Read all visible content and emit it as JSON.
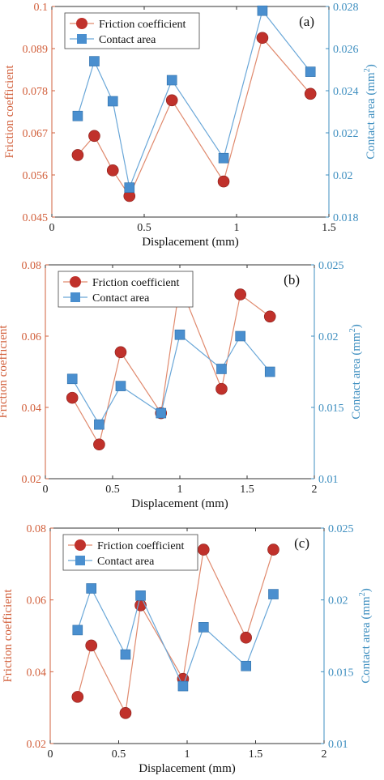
{
  "colors": {
    "friction": "#c0312b",
    "friction_line": "#e08a6e",
    "contact": "#4a8fcf",
    "contact_line": "#6aa7d8",
    "left_axis": "#d2603c",
    "right_axis": "#3f8fc0",
    "frame": "#333333"
  },
  "chart_data": [
    {
      "type": "line",
      "panel_label": "(a)",
      "xlabel": "Displacement (mm)",
      "ylabel_left": "Friction coefficient",
      "ylabel_right": "Contact area (mm",
      "ylabel_right_sup": "2",
      "ylabel_right_close": ")",
      "xlim": [
        0,
        1.5
      ],
      "xticks": [
        0,
        0.5,
        1,
        1.5
      ],
      "xtick_labels": [
        "0",
        "0.5",
        "1",
        "1.5"
      ],
      "ylim_left": [
        0.045,
        0.1
      ],
      "yticks_left": [
        0.045,
        0.056,
        0.067,
        0.078,
        0.089,
        0.1
      ],
      "ytick_labels_left": [
        "0.045",
        "0.056",
        "0.067",
        "0.078",
        "0.089",
        "0.1"
      ],
      "ylim_right": [
        0.018,
        0.028
      ],
      "yticks_right": [
        0.018,
        0.02,
        0.022,
        0.024,
        0.026,
        0.028
      ],
      "ytick_labels_right": [
        "0.018",
        "0.02",
        "0.022",
        "0.024",
        "0.026",
        "0.028"
      ],
      "legend_position": "top-left",
      "series": [
        {
          "name": "Friction coefficient",
          "axis": "left",
          "marker": "circle",
          "x": [
            0.14,
            0.23,
            0.33,
            0.42,
            0.65,
            0.93,
            1.14,
            1.4
          ],
          "y": [
            0.0612,
            0.0662,
            0.0572,
            0.0505,
            0.0755,
            0.0543,
            0.0918,
            0.0772
          ]
        },
        {
          "name": "Contact area",
          "axis": "right",
          "marker": "square",
          "x": [
            0.14,
            0.23,
            0.33,
            0.42,
            0.65,
            0.93,
            1.14,
            1.4
          ],
          "y": [
            0.0228,
            0.0254,
            0.0235,
            0.0194,
            0.0245,
            0.0208,
            0.0278,
            0.0249
          ]
        }
      ]
    },
    {
      "type": "line",
      "panel_label": "(b)",
      "xlabel": "Displacement (mm)",
      "ylabel_left": "Friction coefficient",
      "ylabel_right": "Contact area (mm",
      "ylabel_right_sup": "2",
      "ylabel_right_close": ")",
      "xlim": [
        0,
        2
      ],
      "xticks": [
        0,
        0.5,
        1,
        1.5,
        2
      ],
      "xtick_labels": [
        "0",
        "0.5",
        "1",
        "1.5",
        "2"
      ],
      "ylim_left": [
        0.02,
        0.08
      ],
      "yticks_left": [
        0.02,
        0.04,
        0.06,
        0.08
      ],
      "ytick_labels_left": [
        "0.02",
        "0.04",
        "0.06",
        "0.08"
      ],
      "ylim_right": [
        0.01,
        0.025
      ],
      "yticks_right": [
        0.01,
        0.015,
        0.02,
        0.025
      ],
      "ytick_labels_right": [
        "0.01",
        "0.015",
        "0.02",
        "0.025"
      ],
      "legend_position": "top-left",
      "series": [
        {
          "name": "Friction coefficient",
          "axis": "left",
          "marker": "circle",
          "x": [
            0.2,
            0.4,
            0.56,
            0.86,
            1.0,
            1.31,
            1.45,
            1.67
          ],
          "y": [
            0.0427,
            0.0296,
            0.0555,
            0.0384,
            0.0745,
            0.0452,
            0.0717,
            0.0655
          ]
        },
        {
          "name": "Contact area",
          "axis": "right",
          "marker": "square",
          "x": [
            0.2,
            0.4,
            0.56,
            0.86,
            1.0,
            1.31,
            1.45,
            1.67
          ],
          "y": [
            0.017,
            0.0138,
            0.0165,
            0.0146,
            0.0201,
            0.0177,
            0.02,
            0.0175
          ]
        }
      ]
    },
    {
      "type": "line",
      "panel_label": "(c)",
      "xlabel": "Displacement (mm)",
      "ylabel_left": "Friction coefficient",
      "ylabel_right": "Contact area (mm",
      "ylabel_right_sup": "2",
      "ylabel_right_close": ")",
      "xlim": [
        0,
        2
      ],
      "xticks": [
        0,
        0.5,
        1,
        1.5,
        2
      ],
      "xtick_labels": [
        "0",
        "0.5",
        "1",
        "1.5",
        "2"
      ],
      "ylim_left": [
        0.02,
        0.08
      ],
      "yticks_left": [
        0.02,
        0.04,
        0.06,
        0.08
      ],
      "ytick_labels_left": [
        "0.02",
        "0.04",
        "0.06",
        "0.08"
      ],
      "ylim_right": [
        0.01,
        0.025
      ],
      "yticks_right": [
        0.01,
        0.015,
        0.02,
        0.025
      ],
      "ytick_labels_right": [
        "0.01",
        "0.015",
        "0.02",
        "0.025"
      ],
      "legend_position": "top-left",
      "series": [
        {
          "name": "Friction coefficient",
          "axis": "left",
          "marker": "circle",
          "x": [
            0.2,
            0.3,
            0.55,
            0.66,
            0.97,
            1.12,
            1.43,
            1.63
          ],
          "y": [
            0.033,
            0.0473,
            0.0285,
            0.0585,
            0.038,
            0.074,
            0.0495,
            0.074
          ]
        },
        {
          "name": "Contact area",
          "axis": "right",
          "marker": "square",
          "x": [
            0.2,
            0.3,
            0.55,
            0.66,
            0.97,
            1.12,
            1.43,
            1.63
          ],
          "y": [
            0.0179,
            0.0208,
            0.0162,
            0.0203,
            0.014,
            0.0181,
            0.0154,
            0.0204
          ]
        }
      ]
    }
  ]
}
